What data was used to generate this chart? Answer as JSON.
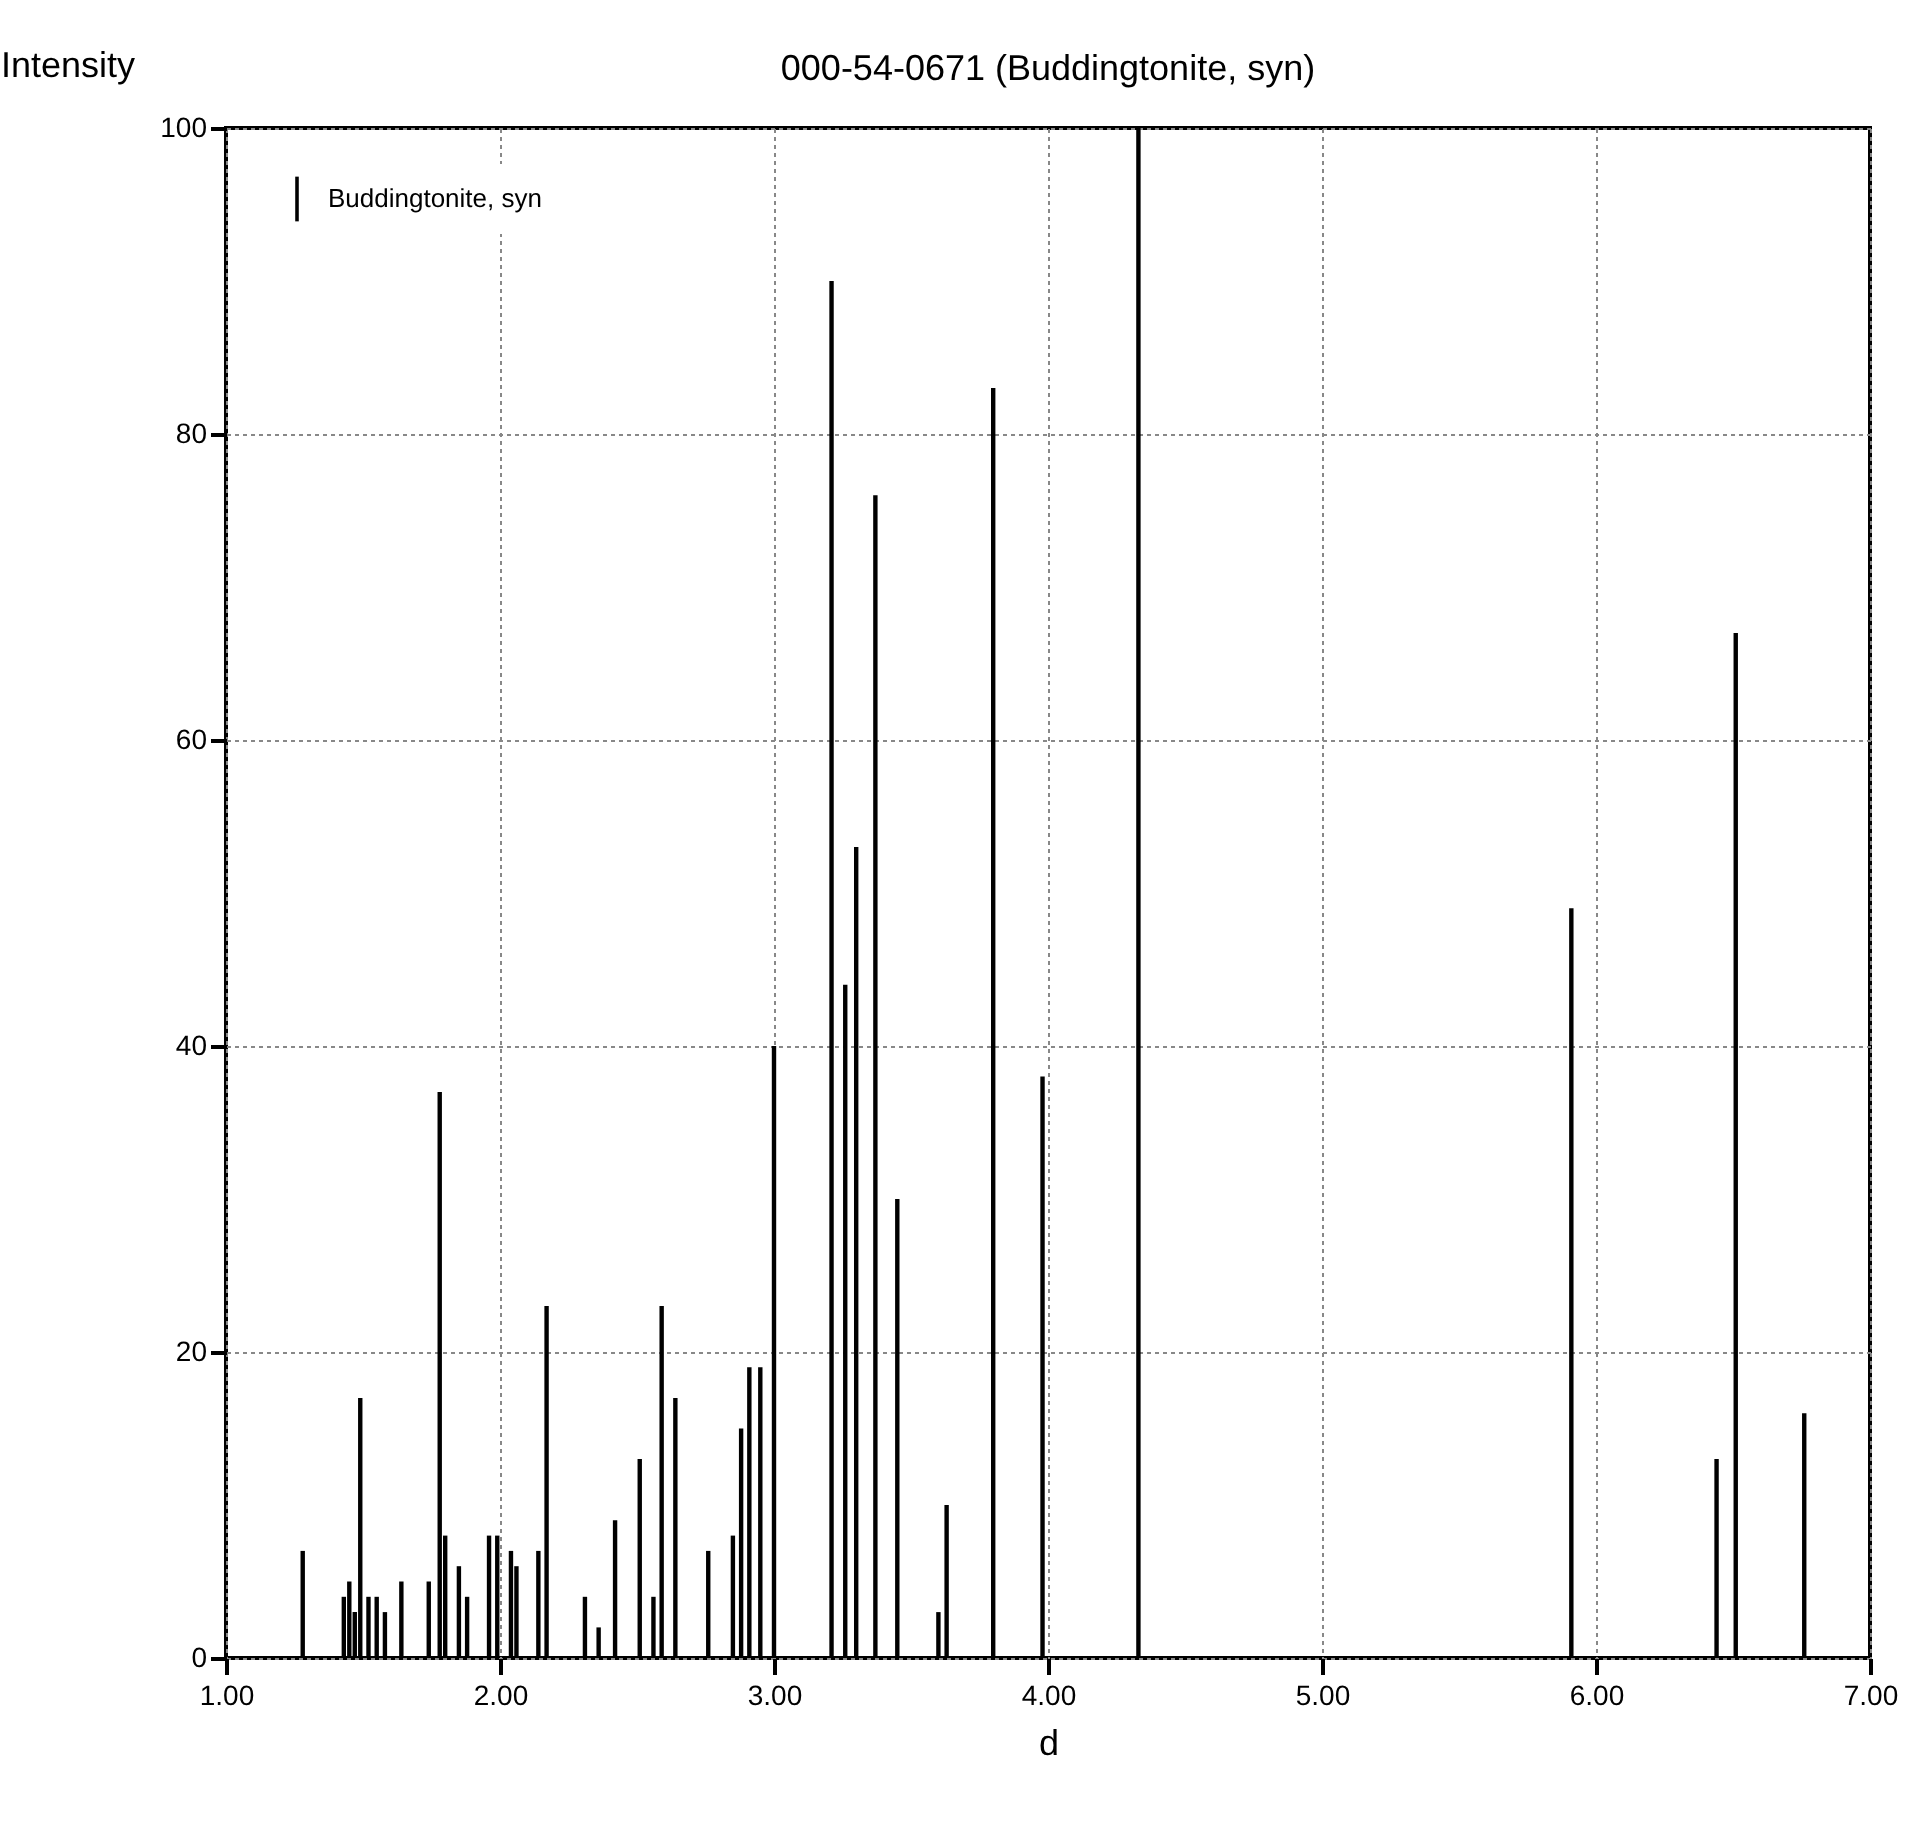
{
  "chart_data": {
    "type": "bar",
    "title": "000-54-0671 (Buddingtonite, syn)",
    "xlabel": "d",
    "ylabel": "Intensity",
    "x": [
      1.28,
      1.43,
      1.45,
      1.47,
      1.49,
      1.52,
      1.55,
      1.58,
      1.64,
      1.74,
      1.78,
      1.8,
      1.85,
      1.88,
      1.96,
      1.99,
      2.04,
      2.06,
      2.14,
      2.17,
      2.31,
      2.36,
      2.42,
      2.51,
      2.56,
      2.59,
      2.64,
      2.76,
      2.85,
      2.88,
      2.91,
      2.95,
      3.0,
      3.21,
      3.26,
      3.3,
      3.37,
      3.45,
      3.6,
      3.63,
      3.8,
      3.98,
      4.33,
      5.91,
      6.44,
      6.51,
      6.76
    ],
    "series": [
      {
        "name": "Buddingtonite, syn",
        "color": "#000000",
        "values": [
          7,
          4,
          5,
          3,
          17,
          4,
          4,
          3,
          5,
          5,
          37,
          8,
          6,
          4,
          8,
          8,
          7,
          6,
          7,
          23,
          4,
          2,
          9,
          13,
          4,
          23,
          17,
          7,
          8,
          15,
          19,
          19,
          40,
          90,
          44,
          53,
          76,
          30,
          3,
          10,
          83,
          38,
          100,
          49,
          13,
          67,
          16
        ]
      }
    ],
    "xlim": [
      1,
      7
    ],
    "xticks": [
      {
        "value": 1,
        "label": "1.00"
      },
      {
        "value": 2,
        "label": "2.00"
      },
      {
        "value": 3,
        "label": "3.00"
      },
      {
        "value": 4,
        "label": "4.00"
      },
      {
        "value": 5,
        "label": "5.00"
      },
      {
        "value": 6,
        "label": "6.00"
      },
      {
        "value": 7,
        "label": "7.00"
      }
    ],
    "ylim": [
      0,
      100
    ],
    "yticks": [
      0,
      20,
      40,
      60,
      80,
      100
    ],
    "grid": true,
    "legend": "top left"
  }
}
